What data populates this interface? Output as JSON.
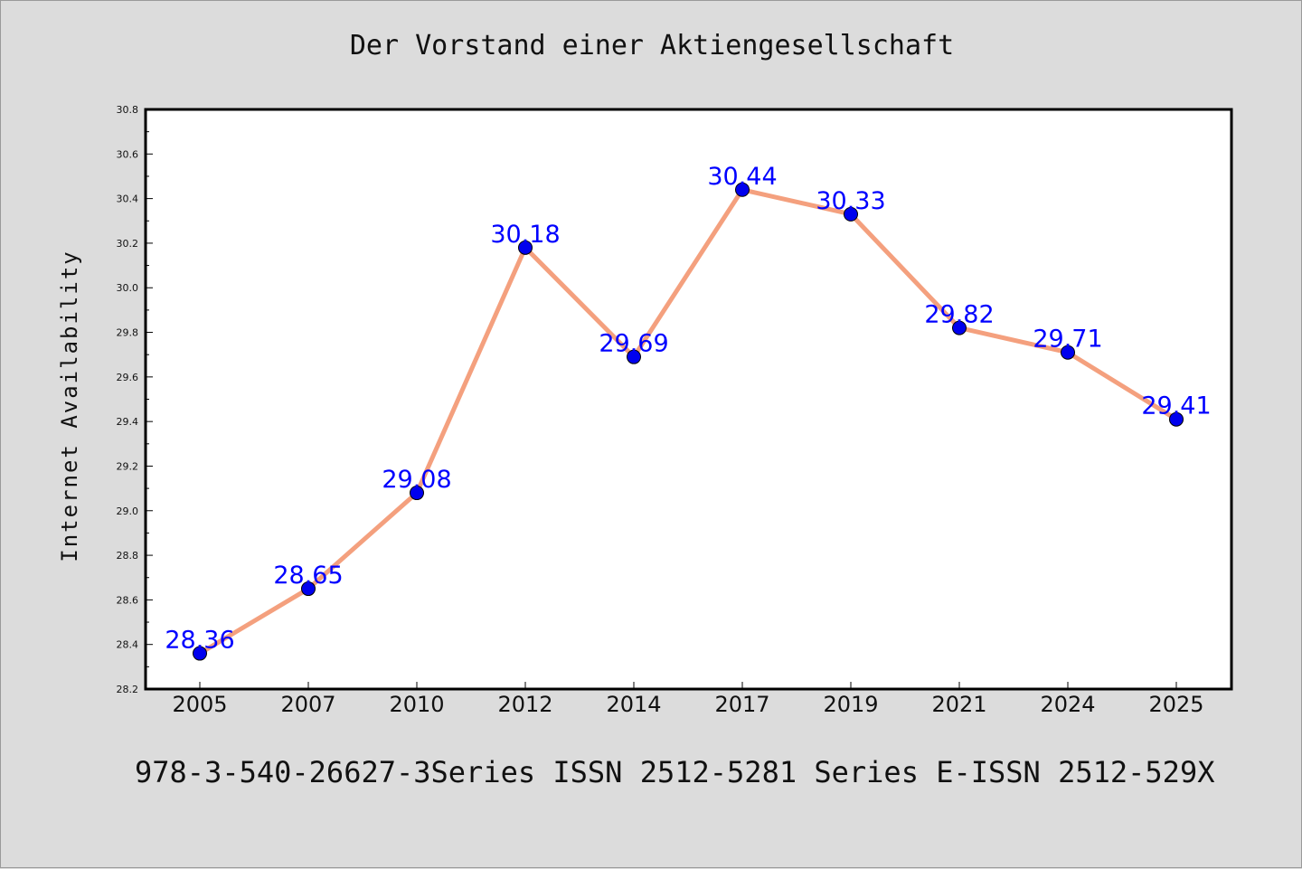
{
  "chart_data": {
    "type": "line",
    "title": "Der Vorstand einer Aktiengesellschaft",
    "xlabel": "",
    "ylabel": "Internet Availability",
    "categories": [
      "2005",
      "2007",
      "2010",
      "2012",
      "2014",
      "2017",
      "2019",
      "2021",
      "2024",
      "2025"
    ],
    "series": [
      {
        "values": [
          28.36,
          28.65,
          29.08,
          30.18,
          29.69,
          30.44,
          30.33,
          29.82,
          29.71,
          29.41
        ],
        "labels": [
          "28.36",
          "28.65",
          "29.08",
          "30.18",
          "29.69",
          "30.44",
          "30.33",
          "29.82",
          "29.71",
          "29.41"
        ],
        "line_color": "#f4a07e",
        "marker_color": "#0000ee",
        "label_color": "#0000ff"
      }
    ],
    "ylim": [
      28.2,
      30.8
    ],
    "yticks": [
      "28.2",
      "28.4",
      "28.6",
      "28.8",
      "29.0",
      "29.2",
      "29.4",
      "29.6",
      "29.8",
      "30.0",
      "30.2",
      "30.4",
      "30.6",
      "30.8"
    ],
    "grid": false,
    "legend": "none"
  },
  "footer": {
    "text": "978-3-540-26627-3Series ISSN 2512-5281 Series E-ISSN 2512-529X"
  },
  "colors": {
    "background": "#dcdcdc",
    "plot_background": "#ffffff",
    "axis": "#000000"
  }
}
